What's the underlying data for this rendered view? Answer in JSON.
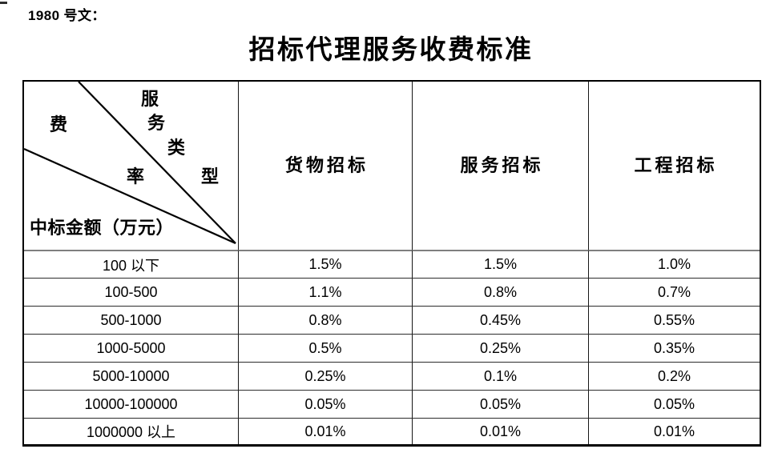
{
  "doc_label": "1980 号文：",
  "title": "招标代理服务收费标准",
  "table": {
    "corner": {
      "fee_chars": [
        "费",
        "率"
      ],
      "type_chars": [
        "服",
        "务",
        "类",
        "型"
      ],
      "amount_label": "中标金额（万元）"
    },
    "columns": [
      "货物招标",
      "服务招标",
      "工程招标"
    ],
    "rows": [
      {
        "label": "100 以下",
        "values": [
          "1.5%",
          "1.5%",
          "1.0%"
        ]
      },
      {
        "label": "100-500",
        "values": [
          "1.1%",
          "0.8%",
          "0.7%"
        ]
      },
      {
        "label": "500-1000",
        "values": [
          "0.8%",
          "0.45%",
          "0.55%"
        ]
      },
      {
        "label": "1000-5000",
        "values": [
          "0.5%",
          "0.25%",
          "0.35%"
        ]
      },
      {
        "label": "5000-10000",
        "values": [
          "0.25%",
          "0.1%",
          "0.2%"
        ]
      },
      {
        "label": "10000-100000",
        "values": [
          "0.05%",
          "0.05%",
          "0.05%"
        ]
      },
      {
        "label": "1000000 以上",
        "values": [
          "0.01%",
          "0.01%",
          "0.01%"
        ]
      }
    ]
  },
  "colors": {
    "background": "#ffffff",
    "text": "#000000",
    "outer_border": "#000000",
    "grid_line": "#2c2c2c",
    "header_separator": "#7f7f7f"
  }
}
